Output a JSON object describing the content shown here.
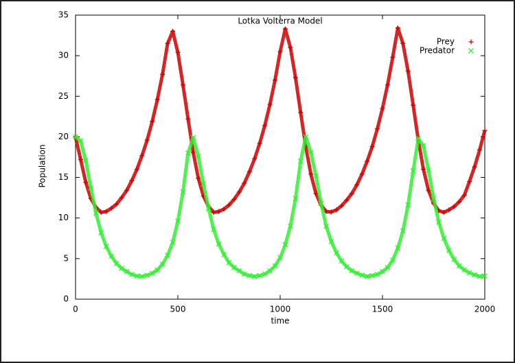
{
  "chart_data": {
    "type": "scatter",
    "title": "Lotka Volterra Model",
    "x_label": "time",
    "y_label": "Population",
    "x": [
      0,
      25,
      50,
      75,
      100,
      125,
      150,
      175,
      200,
      225,
      250,
      275,
      300,
      325,
      350,
      375,
      400,
      425,
      450,
      475,
      500,
      525,
      550,
      575,
      600,
      625,
      650,
      675,
      700,
      725,
      750,
      775,
      800,
      825,
      850,
      875,
      900,
      925,
      950,
      975,
      1000,
      1025,
      1050,
      1075,
      1100,
      1125,
      1150,
      1175,
      1200,
      1225,
      1250,
      1275,
      1300,
      1325,
      1350,
      1375,
      1400,
      1425,
      1450,
      1475,
      1500,
      1525,
      1550,
      1575,
      1600,
      1625,
      1650,
      1675,
      1700,
      1725,
      1750,
      1775,
      1800,
      1825,
      1850,
      1875,
      1900,
      1925,
      1950,
      1975,
      2000
    ],
    "series": [
      {
        "name": "Prey",
        "color": "#cc0000",
        "marker": "+",
        "values": [
          20.0,
          17.2,
          14.4,
          12.4,
          11.3,
          10.7,
          10.8,
          11.2,
          11.7,
          12.5,
          13.4,
          14.6,
          16.0,
          17.7,
          19.6,
          21.9,
          24.6,
          27.7,
          31.5,
          33.0,
          30.4,
          26.4,
          22.2,
          18.1,
          14.9,
          12.7,
          11.4,
          10.7,
          10.8,
          11.1,
          11.6,
          12.3,
          13.2,
          14.3,
          15.7,
          17.3,
          19.2,
          21.4,
          24.0,
          27.0,
          30.5,
          33.3,
          31.0,
          27.3,
          23.0,
          18.8,
          15.4,
          13.0,
          11.6,
          10.8,
          10.75,
          11.0,
          11.5,
          12.2,
          13.0,
          14.1,
          15.4,
          17.0,
          18.8,
          21.0,
          23.5,
          26.4,
          29.8,
          33.4,
          31.5,
          28.1,
          23.9,
          19.6,
          16.0,
          13.4,
          11.8,
          10.9,
          10.7,
          11.0,
          11.4,
          12.0,
          12.8,
          14.5,
          16.3,
          18.4,
          20.8
        ]
      },
      {
        "name": "Predator",
        "color": "#33ee33",
        "marker": "x",
        "values": [
          20.0,
          19.5,
          17.1,
          13.7,
          10.6,
          8.2,
          6.5,
          5.3,
          4.4,
          3.8,
          3.4,
          3.05,
          2.85,
          2.8,
          2.95,
          3.2,
          3.6,
          4.3,
          5.4,
          7.0,
          9.6,
          13.2,
          18.0,
          19.9,
          17.6,
          14.2,
          11.2,
          8.6,
          6.8,
          5.5,
          4.5,
          3.9,
          3.5,
          3.1,
          2.9,
          2.8,
          2.9,
          3.1,
          3.5,
          4.1,
          5.1,
          6.7,
          9.0,
          12.4,
          17.0,
          20.0,
          18.1,
          15.2,
          11.8,
          9.0,
          7.1,
          5.7,
          4.7,
          4.0,
          3.5,
          3.2,
          2.95,
          2.8,
          2.9,
          3.05,
          3.4,
          3.9,
          4.8,
          6.3,
          8.4,
          11.6,
          15.8,
          19.8,
          18.9,
          15.9,
          12.4,
          9.5,
          7.5,
          6.0,
          4.9,
          4.1,
          3.6,
          3.25,
          3.0,
          2.8,
          2.85
        ]
      }
    ],
    "xlim": [
      0,
      2000
    ],
    "xticks": [
      0,
      500,
      1000,
      1500,
      2000
    ],
    "ylim": [
      0,
      35
    ],
    "yticks": [
      0,
      5,
      10,
      15,
      20,
      25,
      30,
      35
    ],
    "grid": false,
    "legend": "top-right"
  }
}
